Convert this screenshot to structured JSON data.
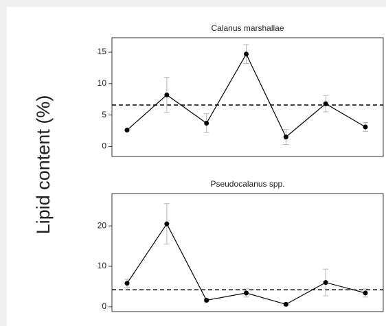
{
  "ylabel": "Lipid content (%)",
  "chart_data": [
    {
      "type": "line",
      "title": "Calanus marshallae",
      "categories": [
        null,
        null,
        null,
        null,
        null,
        null,
        null
      ],
      "series": [
        {
          "color": "#000000",
          "values": [
            2.6,
            8.2,
            3.7,
            14.7,
            1.5,
            6.8,
            3.1
          ],
          "errors": [
            0,
            2.8,
            1.5,
            1.5,
            1.2,
            1.3,
            0.7
          ]
        }
      ],
      "reference_line": 6.6,
      "ylim": [
        -1.6,
        17.3
      ],
      "yticks": [
        0,
        5,
        10,
        15
      ]
    },
    {
      "type": "line",
      "title": "Pseudocalanus spp.",
      "categories": [
        null,
        null,
        null,
        null,
        null,
        null,
        null
      ],
      "series": [
        {
          "color": "#000000",
          "values": [
            5.8,
            20.5,
            1.6,
            3.4,
            0.6,
            6.0,
            3.4
          ],
          "errors": [
            1.0,
            5.0,
            0.4,
            1.0,
            0.3,
            3.3,
            1.0
          ]
        }
      ],
      "reference_line": 4.2,
      "ylim": [
        -1.2,
        28
      ],
      "yticks": [
        0,
        10,
        20
      ]
    }
  ]
}
